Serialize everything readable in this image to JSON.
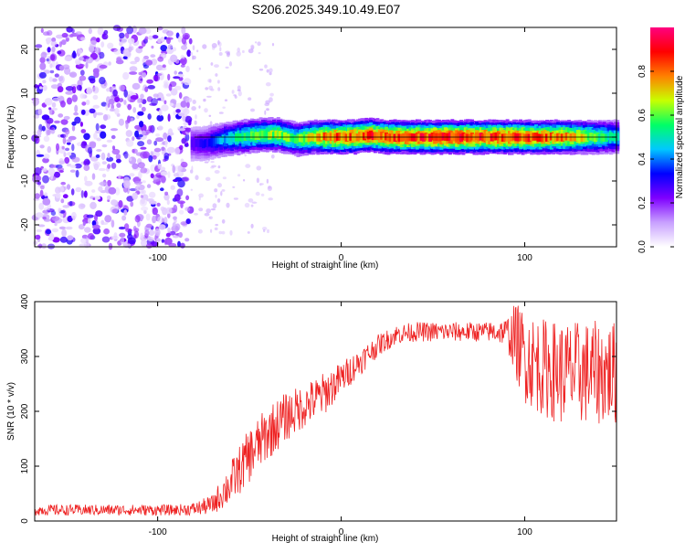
{
  "title": "S206.2025.349.10.49.E07",
  "chart_data": [
    {
      "type": "heatmap",
      "xlabel": "Height of straight line (km)",
      "ylabel": "Frequency (Hz)",
      "xlim": [
        -167,
        150
      ],
      "ylim": [
        -25,
        25
      ],
      "xticks": [
        -100,
        0,
        100
      ],
      "yticks": [
        -20,
        -10,
        0,
        10,
        20
      ],
      "colorbar": {
        "label": "Normalized spectral amplitude",
        "range": [
          0,
          1
        ],
        "ticks": [
          "0.0",
          "0.2",
          "0.4",
          "0.6",
          "0.8"
        ],
        "colors": [
          "#ffffff",
          "#c8a0ff",
          "#7f00ff",
          "#0000ff",
          "#00c8ff",
          "#00ff66",
          "#c8ff00",
          "#ff8000",
          "#ff0000",
          "#ff0080"
        ]
      },
      "ridge": {
        "x": [
          -82,
          -75,
          -65,
          -55,
          -45,
          -35,
          -25,
          -15,
          -5,
          5,
          15,
          25,
          40,
          60,
          80,
          100,
          120,
          150
        ],
        "frequency": [
          -1.5,
          -1.5,
          -0.5,
          0,
          0.5,
          0.5,
          -0.5,
          0,
          0,
          0,
          0.5,
          0,
          0,
          0,
          0,
          0,
          0,
          0
        ],
        "peak_amplitude": [
          0.25,
          0.3,
          0.45,
          0.6,
          0.65,
          0.7,
          0.6,
          0.8,
          0.9,
          0.92,
          0.95,
          0.92,
          0.95,
          0.98,
          0.95,
          0.92,
          0.88,
          0.5
        ]
      },
      "noise_region_x": [
        -167,
        -82
      ]
    },
    {
      "type": "line",
      "xlabel": "Height of straight line (km)",
      "ylabel": "SNR (10 * v/v)",
      "xlim": [
        -167,
        150
      ],
      "ylim": [
        0,
        400
      ],
      "xticks": [
        -100,
        0,
        100
      ],
      "yticks": [
        0,
        100,
        200,
        300,
        400
      ],
      "series": [
        {
          "color": "#ee2222",
          "x": [
            -167,
            -150,
            -130,
            -110,
            -90,
            -80,
            -70,
            -60,
            -50,
            -40,
            -30,
            -20,
            -10,
            0,
            10,
            20,
            30,
            40,
            50,
            60,
            70,
            80,
            90,
            95,
            100,
            110,
            120,
            130,
            140,
            150
          ],
          "y": [
            20,
            20,
            20,
            20,
            20,
            22,
            30,
            70,
            120,
            160,
            190,
            210,
            230,
            260,
            290,
            320,
            340,
            345,
            345,
            345,
            345,
            345,
            345,
            330,
            300,
            280,
            270,
            270,
            270,
            270
          ],
          "noise_amplitude": [
            10,
            10,
            10,
            10,
            10,
            12,
            18,
            40,
            50,
            50,
            45,
            40,
            40,
            30,
            25,
            20,
            18,
            18,
            18,
            18,
            18,
            18,
            25,
            70,
            85,
            90,
            95,
            95,
            95,
            95
          ]
        }
      ]
    }
  ]
}
